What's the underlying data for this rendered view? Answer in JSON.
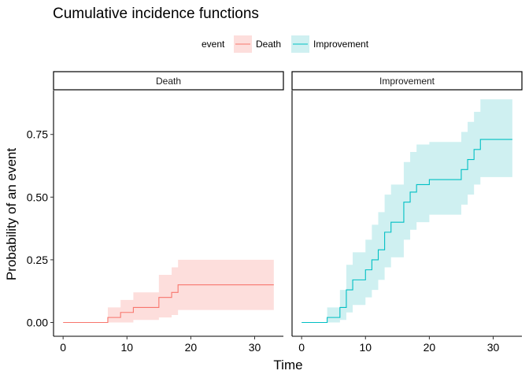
{
  "chart_data": {
    "type": "line",
    "title": "Cumulative incidence functions",
    "xlabel": "Time",
    "ylabel": "Probability of an event",
    "legend": {
      "title": "event",
      "position": "top",
      "entries": [
        {
          "name": "Death",
          "color": "#F8766D",
          "fill": "#FDDEDC"
        },
        {
          "name": "Improvement",
          "color": "#00BFC4",
          "fill": "#CFF0F1"
        }
      ]
    },
    "xlim": [
      -1.5,
      34.5
    ],
    "ylim": [
      -0.055,
      0.925
    ],
    "xticks": [
      0,
      10,
      20,
      30
    ],
    "xtick_labels": [
      "0",
      "10",
      "20",
      "30"
    ],
    "yticks": [
      0,
      0.25,
      0.5,
      0.75
    ],
    "ytick_labels": [
      "0.00",
      "0.25",
      "0.50",
      "0.75"
    ],
    "grid": false,
    "step": true,
    "panels": [
      {
        "label": "Death",
        "series": [
          {
            "name": "Death",
            "x": [
              0,
              7,
              9,
              11,
              15,
              17,
              18,
              33
            ],
            "y": [
              0,
              0.02,
              0.04,
              0.06,
              0.1,
              0.12,
              0.15,
              0.15
            ],
            "lower": [
              0,
              0,
              0,
              0.01,
              0.02,
              0.03,
              0.05,
              0.05
            ],
            "upper": [
              0,
              0.06,
              0.09,
              0.12,
              0.19,
              0.22,
              0.25,
              0.25
            ]
          }
        ]
      },
      {
        "label": "Improvement",
        "series": [
          {
            "name": "Improvement",
            "x": [
              0,
              4,
              6,
              7,
              8,
              10,
              11,
              12,
              13,
              14,
              16,
              17,
              18,
              20,
              25,
              26,
              27,
              28,
              33
            ],
            "y": [
              0,
              0.02,
              0.06,
              0.13,
              0.17,
              0.21,
              0.25,
              0.29,
              0.36,
              0.4,
              0.48,
              0.52,
              0.55,
              0.57,
              0.61,
              0.65,
              0.69,
              0.73,
              0.73
            ],
            "lower": [
              0,
              0,
              0.01,
              0.04,
              0.07,
              0.1,
              0.13,
              0.17,
              0.22,
              0.26,
              0.33,
              0.37,
              0.4,
              0.43,
              0.47,
              0.51,
              0.55,
              0.58,
              0.58
            ],
            "upper": [
              0,
              0.06,
              0.13,
              0.23,
              0.28,
              0.33,
              0.39,
              0.44,
              0.51,
              0.55,
              0.64,
              0.68,
              0.71,
              0.72,
              0.76,
              0.8,
              0.84,
              0.89,
              0.89
            ]
          }
        ]
      }
    ]
  }
}
